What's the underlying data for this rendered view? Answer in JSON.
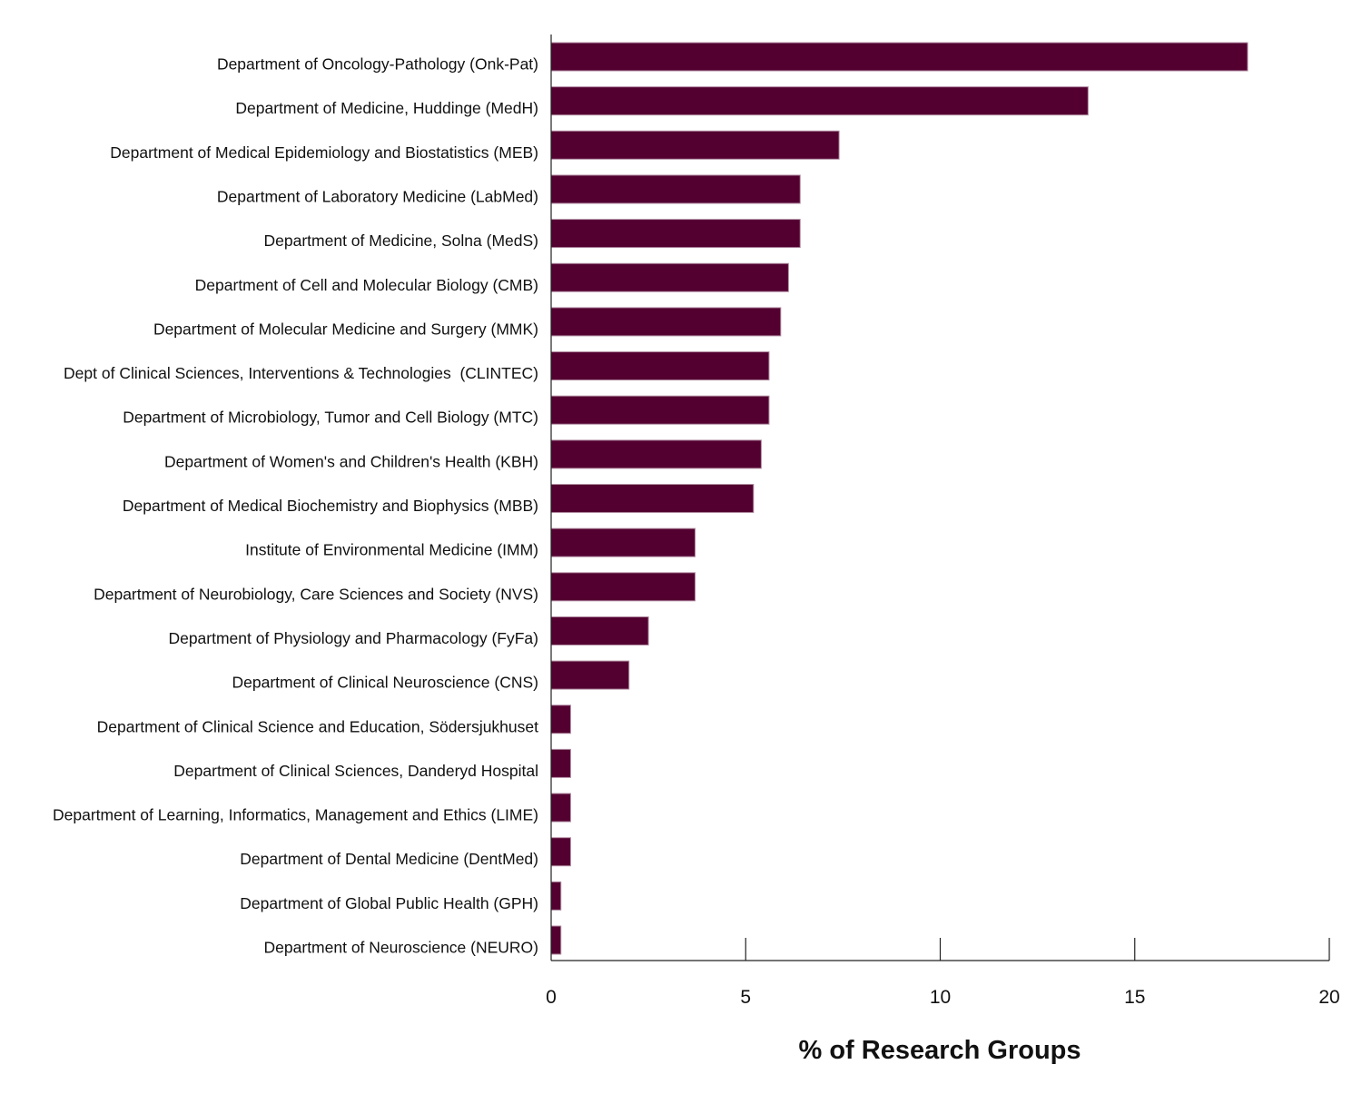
{
  "chart_data": {
    "type": "bar",
    "orientation": "horizontal",
    "title": "",
    "xlabel": "% of Research Groups",
    "ylabel": "",
    "xlim": [
      0,
      20
    ],
    "xticks": [
      0,
      5,
      10,
      15,
      20
    ],
    "grid": false,
    "bar_color": "#530030",
    "bar_edge_color": "#b08aa0",
    "categories": [
      "Department of Oncology-Pathology (Onk-Pat)",
      "Department of Medicine, Huddinge (MedH)",
      "Department of Medical Epidemiology and Biostatistics (MEB)",
      "Department of Laboratory Medicine (LabMed)",
      "Department of Medicine, Solna (MedS)",
      "Department of Cell and Molecular Biology (CMB)",
      "Department of Molecular Medicine and Surgery (MMK)",
      "Dept of Clinical Sciences, Interventions & Technologies  (CLINTEC)",
      "Department of Microbiology, Tumor and Cell Biology (MTC)",
      "Department of Women's and Children's Health (KBH)",
      "Department of Medical Biochemistry and Biophysics (MBB)",
      "Institute of Environmental Medicine (IMM)",
      "Department of Neurobiology, Care Sciences and Society (NVS)",
      "Department of Physiology and Pharmacology (FyFa)",
      "Department of Clinical Neuroscience (CNS)",
      "Department of Clinical Science and Education, Södersjukhuset",
      "Department of Clinical Sciences, Danderyd Hospital",
      "Department of Learning, Informatics, Management and Ethics (LIME)",
      "Department of Dental Medicine (DentMed)",
      "Department of Global Public Health (GPH)",
      "Department of Neuroscience (NEURO)"
    ],
    "values": [
      17.9,
      13.8,
      7.4,
      6.4,
      6.4,
      6.1,
      5.9,
      5.6,
      5.6,
      5.4,
      5.2,
      3.7,
      3.7,
      2.5,
      2.0,
      0.5,
      0.5,
      0.5,
      0.5,
      0.25,
      0.25
    ]
  }
}
